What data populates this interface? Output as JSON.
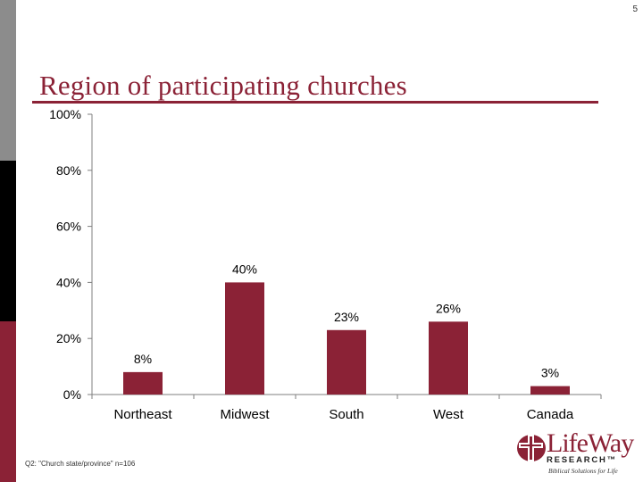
{
  "page_number": "5",
  "footnote": "Q2: \"Church state/province\" n=106",
  "logo": {
    "wordmark": "LifeWay",
    "sub": "RESEARCH™",
    "tagline": "Biblical Solutions for Life"
  },
  "colors": {
    "bar": "#8b2236",
    "title": "#8b2236",
    "axis": "#7f7f7f"
  },
  "chart_data": {
    "type": "bar",
    "title": "Region of participating churches",
    "categories": [
      "Northeast",
      "Midwest",
      "South",
      "West",
      "Canada"
    ],
    "values": [
      8,
      40,
      23,
      26,
      3
    ],
    "data_labels": [
      "8%",
      "40%",
      "23%",
      "26%",
      "3%"
    ],
    "ylim": [
      0,
      100
    ],
    "yticks": [
      0,
      20,
      40,
      60,
      80,
      100
    ],
    "ytick_labels": [
      "0%",
      "20%",
      "40%",
      "60%",
      "80%",
      "100%"
    ],
    "grid": false,
    "legend": "none"
  }
}
